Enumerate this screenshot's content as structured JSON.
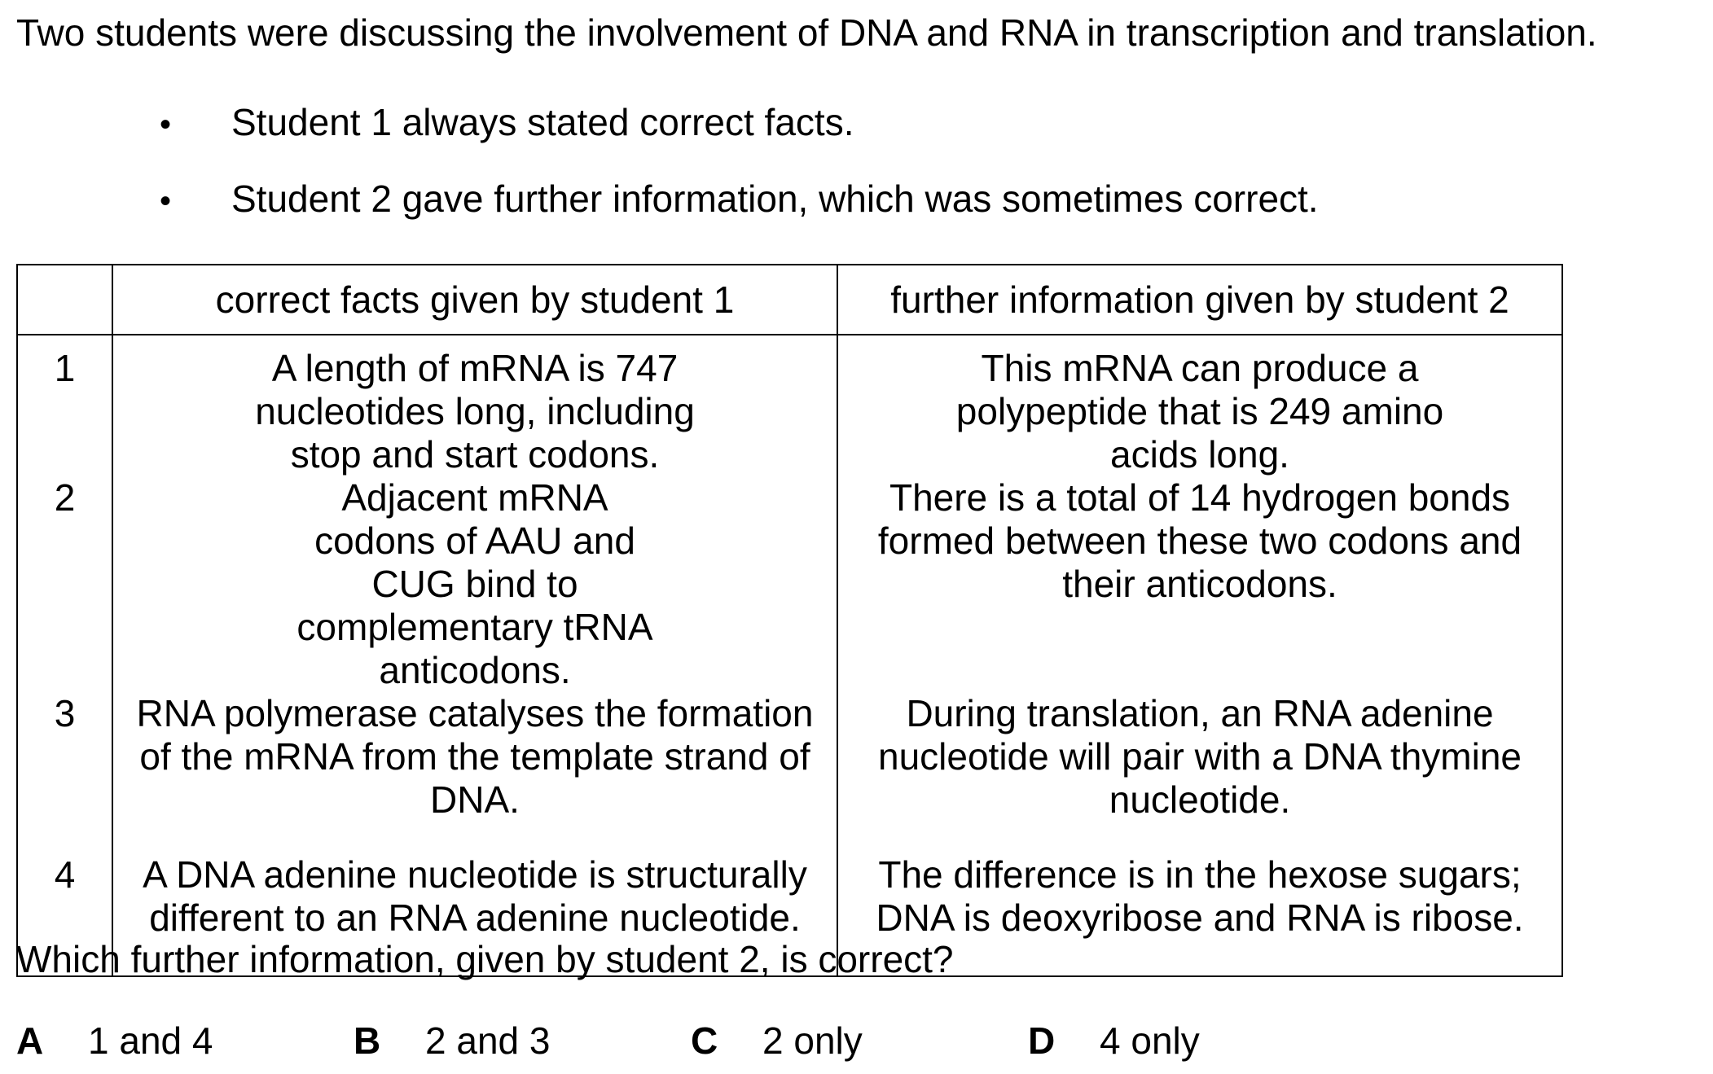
{
  "intro": "Two students were discussing the involvement of DNA and RNA in transcription and translation.",
  "bullets": [
    "Student 1 always stated correct facts.",
    "Student 2 gave further information, which was sometimes correct."
  ],
  "bullet_symbol": "•",
  "table": {
    "headers": [
      "",
      "correct facts given by student 1",
      "further information given by student 2"
    ],
    "rows": [
      {
        "num": "1",
        "fact": "A length of mRNA is 747 nucleotides long, including stop and start codons.",
        "info": "This mRNA can produce a polypeptide that is 249 amino acids long."
      },
      {
        "num": "2",
        "fact": "Adjacent mRNA codons of AAU and CUG bind to complementary tRNA anticodons.",
        "info": "There is a total of 14 hydrogen bonds formed between these two codons and their anticodons."
      },
      {
        "num": "3",
        "fact": "RNA polymerase catalyses the formation of the mRNA from the template strand of DNA.",
        "info": "During translation, an RNA adenine nucleotide will pair with a DNA thymine nucleotide."
      },
      {
        "num": "4",
        "fact": "A DNA adenine nucleotide is structurally different to an RNA adenine nucleotide.",
        "info": "The difference is in the hexose sugars; DNA is deoxyribose and RNA is ribose."
      }
    ]
  },
  "question": "Which further information, given by student 2, is correct?",
  "options": [
    {
      "letter": "A",
      "text": "1 and 4"
    },
    {
      "letter": "B",
      "text": "2 and 3"
    },
    {
      "letter": "C",
      "text": "2 only"
    },
    {
      "letter": "D",
      "text": "4 only"
    }
  ]
}
